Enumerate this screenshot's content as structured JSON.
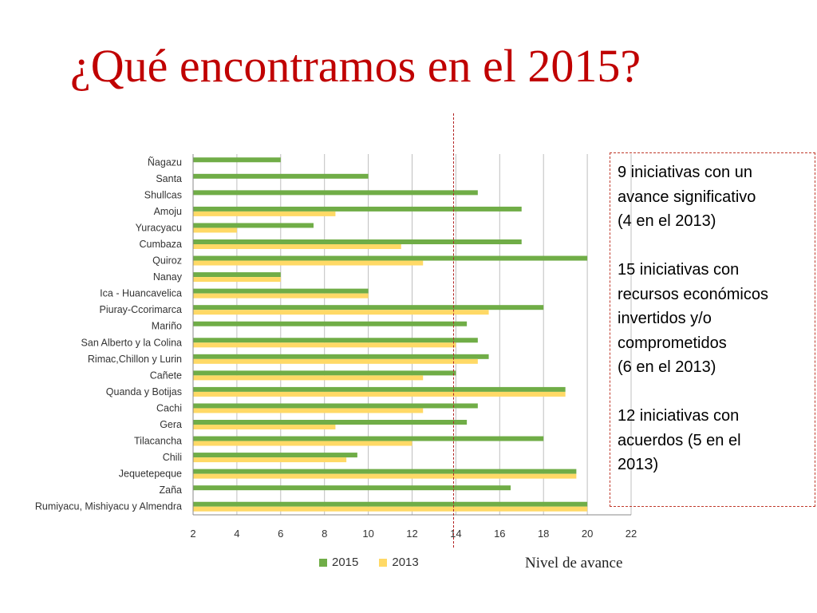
{
  "slide": {
    "title": "¿Qué encontramos en el 2015?"
  },
  "info_box": {
    "paragraphs": [
      [
        "9 iniciativas con un",
        "avance significativo",
        "(4 en el 2013)"
      ],
      [
        "15 iniciativas  con",
        "recursos económicos",
        "invertidos y/o",
        "comprometidos",
        "(6 en el 2013)"
      ],
      [
        "12 iniciativas con",
        "acuerdos (5 en el",
        "2013)"
      ]
    ]
  },
  "axis_caption": "Nivel de avance",
  "colors": {
    "title": "#c00000",
    "series_2015": "#70ad47",
    "series_2013": "#ffd966",
    "reference_line": "#b22222",
    "gridline": "#bfbfbf"
  },
  "chart_data": {
    "type": "bar",
    "orientation": "horizontal",
    "categories": [
      "Ñagazu",
      "Santa",
      "Shullcas",
      "Amoju",
      "Yuracyacu",
      "Cumbaza",
      "Quiroz",
      "Nanay",
      "Ica - Huancavelica",
      "Piuray-Ccorimarca",
      "Mariño",
      "San Alberto y la Colina",
      "Rimac,Chillon y Lurin",
      "Cañete",
      "Quanda y Botijas",
      "Cachi",
      "Gera",
      "Tilacancha",
      "Chili",
      "Jequetepeque",
      "Zaña",
      "Rumiyacu, Mishiyacu y Almendra"
    ],
    "series": [
      {
        "name": "2015",
        "color": "#70ad47",
        "values": [
          6,
          10,
          15,
          17,
          7.5,
          17,
          20,
          6,
          10,
          18,
          14.5,
          15,
          15.5,
          14,
          19,
          15,
          14.5,
          18,
          9.5,
          19.5,
          16.5,
          20
        ]
      },
      {
        "name": "2013",
        "color": "#ffd966",
        "values": [
          null,
          null,
          null,
          8.5,
          4,
          11.5,
          12.5,
          6,
          10,
          15.5,
          null,
          14,
          15,
          12.5,
          19,
          12.5,
          8.5,
          12,
          9,
          19.5,
          null,
          20
        ]
      }
    ],
    "xlim": [
      2,
      22
    ],
    "xticks": [
      2,
      4,
      6,
      8,
      10,
      12,
      14,
      16,
      18,
      20,
      22
    ],
    "reference_value": 14,
    "grid": true,
    "legend": "bottom",
    "xlabel": "Nivel de avance",
    "title": "",
    "ylabel": ""
  }
}
